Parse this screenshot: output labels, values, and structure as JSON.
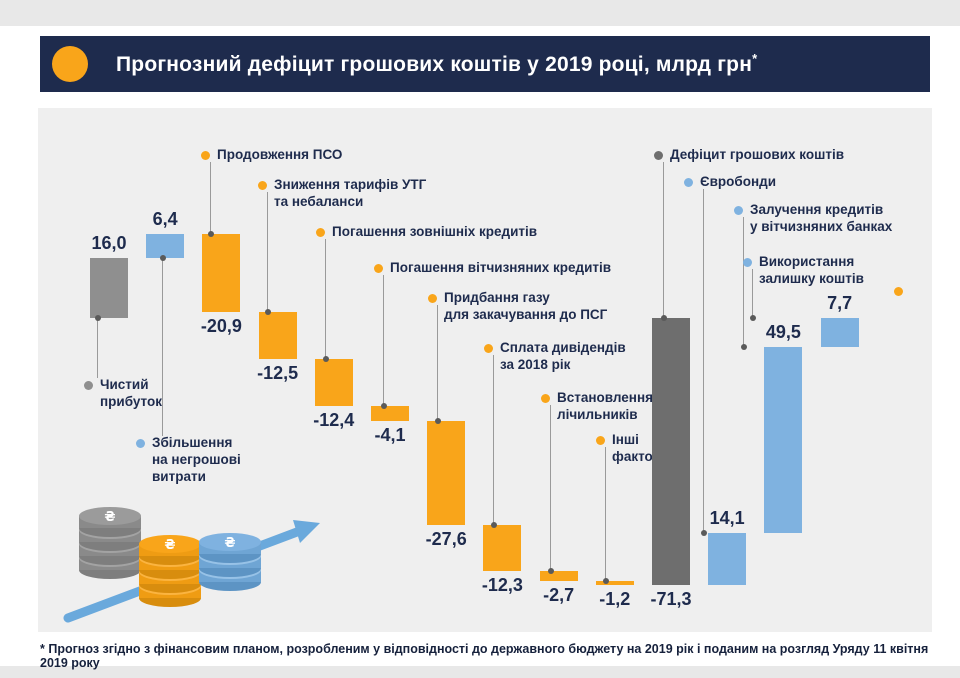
{
  "header": {
    "title": "Прогнозний дефіцит грошових коштів у 2019 році, млрд грн",
    "footnote_marker": "*"
  },
  "footnote": "* Прогноз згідно з фінансовим планом, розробленим у відповідності до державного бюджету на 2019 рік і поданим на розгляд Уряду 11 квітня 2019 року",
  "colors": {
    "navy": "#1e2b4d",
    "orange": "#f9a51a",
    "blue": "#7fb2e0",
    "gray": "#8f8f8f",
    "dark_gray": "#6e6e6e",
    "panel_bg": "#efefef",
    "leader_line": "#9a9a9a",
    "text": "#1e2b4d"
  },
  "chart_data": {
    "type": "bar",
    "subtype": "waterfall",
    "title": "Прогнозний дефіцит грошових коштів у 2019 році, млрд грн",
    "unit": "млрд грн",
    "ylim": [
      -75,
      25
    ],
    "grid": false,
    "axes_visible": false,
    "bars": [
      {
        "label": "Чистий прибуток",
        "label_lines": [
          "Чистий",
          "прибуток"
        ],
        "value": 16.0,
        "display": "16,0",
        "color": "gray",
        "kind": "start"
      },
      {
        "label": "Збільшення на негрошові витрати",
        "label_lines": [
          "Збільшення",
          "на негрошові",
          "витрати"
        ],
        "value": 6.4,
        "display": "6,4",
        "color": "blue",
        "kind": "delta"
      },
      {
        "label": "Продовження ПСО",
        "label_lines": [
          "Продовження ПСО"
        ],
        "value": -20.9,
        "display": "-20,9",
        "color": "orange",
        "kind": "delta"
      },
      {
        "label": "Зниження тарифів УТГ та небаланси",
        "label_lines": [
          "Зниження тарифів УТГ",
          "та небаланси"
        ],
        "value": -12.5,
        "display": "-12,5",
        "color": "orange",
        "kind": "delta"
      },
      {
        "label": "Погашення зовнішніх кредитів",
        "label_lines": [
          "Погашення зовнішніх кредитів"
        ],
        "value": -12.4,
        "display": "-12,4",
        "color": "orange",
        "kind": "delta"
      },
      {
        "label": "Погашення вітчизняних кредитів",
        "label_lines": [
          "Погашення вітчизняних кредитів"
        ],
        "value": -4.1,
        "display": "-4,1",
        "color": "orange",
        "kind": "delta"
      },
      {
        "label": "Придбання газу для закачування до ПСГ",
        "label_lines": [
          "Придбання газу",
          "для закачування до ПСГ"
        ],
        "value": -27.6,
        "display": "-27,6",
        "color": "orange",
        "kind": "delta"
      },
      {
        "label": "Сплата дивідендів за 2018 рік",
        "label_lines": [
          "Сплата дивідендів",
          "за 2018 рік"
        ],
        "value": -12.3,
        "display": "-12,3",
        "color": "orange",
        "kind": "delta"
      },
      {
        "label": "Встановлення лічильників",
        "label_lines": [
          "Встановлення",
          "лічильників"
        ],
        "value": -2.7,
        "display": "-2,7",
        "color": "orange",
        "kind": "delta"
      },
      {
        "label": "Інші фактори",
        "label_lines": [
          "Інші",
          "фактори"
        ],
        "value": -1.2,
        "display": "-1,2",
        "color": "orange",
        "kind": "delta"
      },
      {
        "label": "Дефіцит грошових коштів",
        "label_lines": [
          "Дефіцит грошових коштів"
        ],
        "value": -71.3,
        "display": "-71,3",
        "color": "darkgray",
        "kind": "total"
      },
      {
        "label": "Євробонди",
        "label_lines": [
          "Євробонди"
        ],
        "value": 14.1,
        "display": "14,1",
        "color": "blue",
        "kind": "delta"
      },
      {
        "label": "Залучення кредитів у вітчизняних банках",
        "label_lines": [
          "Залучення кредитів",
          "у вітчизняних банках"
        ],
        "value": 49.5,
        "display": "49,5",
        "color": "blue",
        "kind": "delta"
      },
      {
        "label": "Використання залишку коштів",
        "label_lines": [
          "Використання",
          "залишку коштів"
        ],
        "value": 7.7,
        "display": "7,7",
        "color": "blue",
        "kind": "delta"
      }
    ]
  }
}
